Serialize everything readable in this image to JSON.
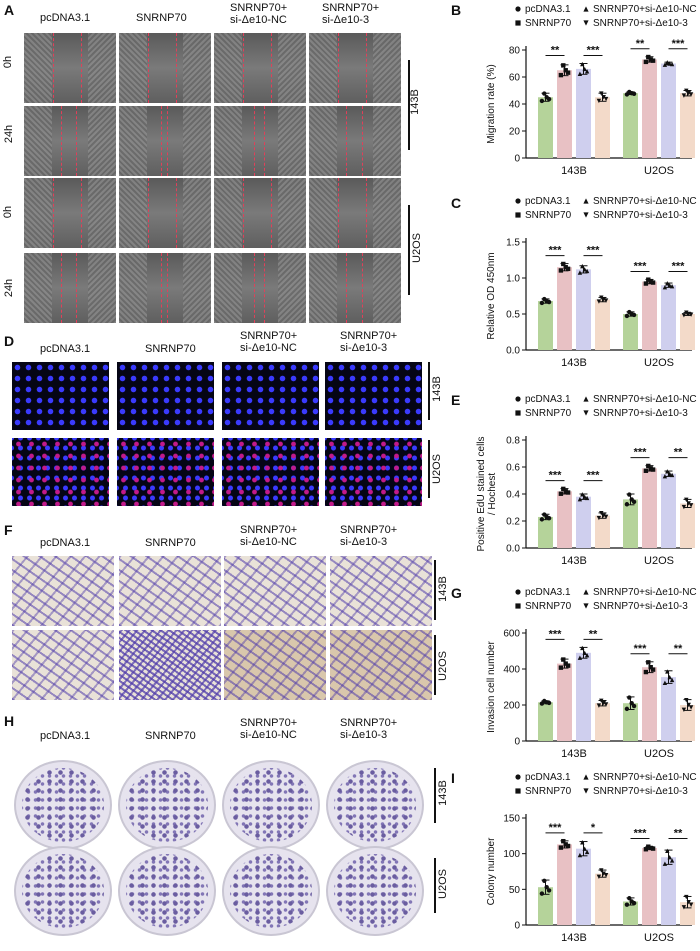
{
  "panels": {
    "A": "A",
    "B": "B",
    "C": "C",
    "D": "D",
    "E": "E",
    "F": "F",
    "G": "G",
    "H": "H",
    "I": "I"
  },
  "groups": {
    "g1": "pcDNA3.1",
    "g2": "SNRNP70",
    "g3_l1": "SNRNP70+",
    "g3_l2": "si-Δe10-NC",
    "g4_l1": "SNRNP70+",
    "g4_l2": "si-Δe10-3"
  },
  "rows": {
    "t0": "0h",
    "t24": "24h",
    "cell1": "143B",
    "cell2": "U2OS"
  },
  "colors": {
    "pcDNA3_1": "#b5d39a",
    "SNRNP70": "#e8c1c4",
    "si_NC": "#cfcfee",
    "si_3": "#f3dac9"
  },
  "legend": {
    "pcdna": "pcDNA3.1",
    "snrnp": "SNRNP70",
    "nc": "SNRNP70+si-Δe10-NC",
    "si3": "SNRNP70+si-Δe10-3"
  },
  "chart_data": [
    {
      "panel": "B",
      "type": "bar",
      "categories": [
        "143B",
        "U2OS"
      ],
      "ylabel": "Migration rate (%)",
      "ylim": [
        0,
        80
      ],
      "yticks": [
        0,
        20,
        40,
        60,
        80
      ],
      "series": [
        {
          "name": "pcDNA3.1",
          "values": [
            45,
            48
          ],
          "errors": [
            3,
            1
          ]
        },
        {
          "name": "SNRNP70",
          "values": [
            65,
            73
          ],
          "errors": [
            4,
            2
          ]
        },
        {
          "name": "SNRNP70+si-Δe10-NC",
          "values": [
            66,
            70
          ],
          "errors": [
            4,
            1
          ]
        },
        {
          "name": "SNRNP70+si-Δe10-3",
          "values": [
            45,
            48
          ],
          "errors": [
            3,
            2
          ]
        }
      ],
      "significance": [
        {
          "category": "143B",
          "pair": [
            0,
            1
          ],
          "label": "**"
        },
        {
          "category": "143B",
          "pair": [
            2,
            3
          ],
          "label": "***"
        },
        {
          "category": "U2OS",
          "pair": [
            0,
            1
          ],
          "label": "**"
        },
        {
          "category": "U2OS",
          "pair": [
            2,
            3
          ],
          "label": "***"
        }
      ]
    },
    {
      "panel": "C",
      "type": "bar",
      "categories": [
        "143B",
        "U2OS"
      ],
      "ylabel": "Relative OD 450nm",
      "ylim": [
        0,
        1.5
      ],
      "yticks": [
        0.0,
        0.5,
        1.0,
        1.5
      ],
      "series": [
        {
          "name": "pcDNA3.1",
          "values": [
            0.68,
            0.5
          ],
          "errors": [
            0.03,
            0.03
          ]
        },
        {
          "name": "SNRNP70",
          "values": [
            1.15,
            0.95
          ],
          "errors": [
            0.05,
            0.03
          ]
        },
        {
          "name": "SNRNP70+si-Δe10-NC",
          "values": [
            1.12,
            0.9
          ],
          "errors": [
            0.05,
            0.03
          ]
        },
        {
          "name": "SNRNP70+si-Δe10-3",
          "values": [
            0.7,
            0.5
          ],
          "errors": [
            0.03,
            0.02
          ]
        }
      ],
      "significance": [
        {
          "category": "143B",
          "pair": [
            0,
            1
          ],
          "label": "***"
        },
        {
          "category": "143B",
          "pair": [
            2,
            3
          ],
          "label": "***"
        },
        {
          "category": "U2OS",
          "pair": [
            0,
            1
          ],
          "label": "***"
        },
        {
          "category": "U2OS",
          "pair": [
            2,
            3
          ],
          "label": "***"
        }
      ]
    },
    {
      "panel": "E",
      "type": "bar",
      "categories": [
        "143B",
        "U2OS"
      ],
      "ylabel": "Positive EdU stained cells\n/ Hochest",
      "ylim": [
        0,
        0.8
      ],
      "yticks": [
        0.0,
        0.2,
        0.4,
        0.6,
        0.8
      ],
      "series": [
        {
          "name": "pcDNA3.1",
          "values": [
            0.23,
            0.36
          ],
          "errors": [
            0.02,
            0.04
          ]
        },
        {
          "name": "SNRNP70",
          "values": [
            0.42,
            0.59
          ],
          "errors": [
            0.02,
            0.02
          ]
        },
        {
          "name": "SNRNP70+si-Δe10-NC",
          "values": [
            0.38,
            0.55
          ],
          "errors": [
            0.02,
            0.02
          ]
        },
        {
          "name": "SNRNP70+si-Δe10-3",
          "values": [
            0.24,
            0.33
          ],
          "errors": [
            0.02,
            0.03
          ]
        }
      ],
      "significance": [
        {
          "category": "143B",
          "pair": [
            0,
            1
          ],
          "label": "***"
        },
        {
          "category": "143B",
          "pair": [
            2,
            3
          ],
          "label": "***"
        },
        {
          "category": "U2OS",
          "pair": [
            0,
            1
          ],
          "label": "***"
        },
        {
          "category": "U2OS",
          "pair": [
            2,
            3
          ],
          "label": "**"
        }
      ]
    },
    {
      "panel": "G",
      "type": "bar",
      "categories": [
        "143B",
        "U2OS"
      ],
      "ylabel": "Invasion cell number",
      "ylim": [
        0,
        600
      ],
      "yticks": [
        0,
        200,
        400,
        600
      ],
      "series": [
        {
          "name": "pcDNA3.1",
          "values": [
            215,
            210
          ],
          "errors": [
            8,
            35
          ]
        },
        {
          "name": "SNRNP70",
          "values": [
            430,
            410
          ],
          "errors": [
            25,
            30
          ]
        },
        {
          "name": "SNRNP70+si-Δe10-NC",
          "values": [
            490,
            355
          ],
          "errors": [
            30,
            35
          ]
        },
        {
          "name": "SNRNP70+si-Δe10-3",
          "values": [
            210,
            200
          ],
          "errors": [
            15,
            30
          ]
        }
      ],
      "significance": [
        {
          "category": "143B",
          "pair": [
            0,
            1
          ],
          "label": "***"
        },
        {
          "category": "143B",
          "pair": [
            2,
            3
          ],
          "label": "**"
        },
        {
          "category": "U2OS",
          "pair": [
            0,
            1
          ],
          "label": "***"
        },
        {
          "category": "U2OS",
          "pair": [
            2,
            3
          ],
          "label": "**"
        }
      ]
    },
    {
      "panel": "I",
      "type": "bar",
      "categories": [
        "143B",
        "U2OS"
      ],
      "ylabel": "Colony number",
      "ylim": [
        0,
        150
      ],
      "yticks": [
        0,
        50,
        100,
        150
      ],
      "series": [
        {
          "name": "pcDNA3.1",
          "values": [
            53,
            33
          ],
          "errors": [
            10,
            5
          ]
        },
        {
          "name": "SNRNP70",
          "values": [
            113,
            108
          ],
          "errors": [
            5,
            2
          ]
        },
        {
          "name": "SNRNP70+si-Δe10-NC",
          "values": [
            107,
            95
          ],
          "errors": [
            10,
            10
          ]
        },
        {
          "name": "SNRNP70+si-Δe10-3",
          "values": [
            72,
            32
          ],
          "errors": [
            5,
            8
          ]
        }
      ],
      "significance": [
        {
          "category": "143B",
          "pair": [
            0,
            1
          ],
          "label": "***"
        },
        {
          "category": "143B",
          "pair": [
            2,
            3
          ],
          "label": "*"
        },
        {
          "category": "U2OS",
          "pair": [
            0,
            1
          ],
          "label": "***"
        },
        {
          "category": "U2OS",
          "pair": [
            2,
            3
          ],
          "label": "**"
        }
      ]
    }
  ]
}
